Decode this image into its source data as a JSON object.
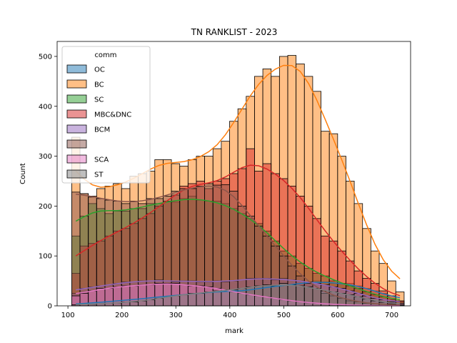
{
  "chart_data": {
    "type": "histogram",
    "title": "TN RANKLIST - 2023",
    "xlabel": "mark",
    "ylabel": "Count",
    "xlim": [
      80,
      735
    ],
    "ylim": [
      0,
      530
    ],
    "xticks": [
      100,
      200,
      300,
      400,
      500,
      600,
      700
    ],
    "yticks": [
      0,
      100,
      200,
      300,
      400,
      500
    ],
    "bins": {
      "start": 107,
      "width": 15.4,
      "count": 40
    },
    "legend": {
      "title": "comm",
      "placement": "top-left"
    },
    "series": [
      {
        "name": "OC",
        "color": "#1f77b4",
        "counts": [
          2,
          5,
          5,
          8,
          8,
          10,
          12,
          12,
          15,
          15,
          18,
          20,
          22,
          20,
          25,
          25,
          28,
          28,
          30,
          28,
          30,
          30,
          35,
          38,
          40,
          40,
          42,
          45,
          48,
          50,
          48,
          45,
          45,
          45,
          40,
          35,
          30,
          25,
          15,
          10
        ]
      },
      {
        "name": "BC",
        "color": "#ff7f0e",
        "counts": [
          338,
          225,
          220,
          235,
          240,
          245,
          235,
          260,
          265,
          270,
          293,
          293,
          285,
          280,
          293,
          300,
          300,
          315,
          330,
          370,
          395,
          420,
          460,
          475,
          460,
          500,
          502,
          485,
          460,
          430,
          350,
          345,
          300,
          250,
          205,
          155,
          110,
          85,
          50,
          28
        ]
      },
      {
        "name": "SC",
        "color": "#2ca02c",
        "counts": [
          140,
          180,
          205,
          195,
          185,
          190,
          190,
          195,
          195,
          205,
          205,
          210,
          208,
          215,
          220,
          212,
          210,
          210,
          205,
          195,
          185,
          175,
          165,
          150,
          130,
          110,
          100,
          85,
          75,
          65,
          60,
          50,
          45,
          40,
          35,
          28,
          22,
          18,
          12,
          8
        ]
      },
      {
        "name": "MBC&DNC",
        "color": "#d62728",
        "counts": [
          65,
          120,
          125,
          130,
          140,
          150,
          155,
          165,
          175,
          185,
          200,
          210,
          222,
          240,
          245,
          250,
          235,
          250,
          255,
          265,
          275,
          315,
          270,
          285,
          265,
          255,
          240,
          220,
          200,
          175,
          140,
          130,
          110,
          90,
          70,
          55,
          45,
          30,
          20,
          10
        ]
      },
      {
        "name": "BCM",
        "color": "#9467bd",
        "counts": [
          25,
          35,
          38,
          40,
          42,
          45,
          48,
          48,
          50,
          50,
          52,
          50,
          48,
          50,
          50,
          48,
          48,
          50,
          48,
          50,
          52,
          55,
          55,
          55,
          52,
          55,
          52,
          50,
          48,
          45,
          42,
          38,
          35,
          30,
          25,
          20,
          15,
          12,
          8,
          5
        ]
      },
      {
        "name": "",
        "color": "#8c564b",
        "counts": [
          228,
          225,
          218,
          215,
          212,
          210,
          205,
          210,
          205,
          215,
          215,
          220,
          230,
          235,
          235,
          240,
          245,
          242,
          243,
          230,
          200,
          180,
          160,
          140,
          120,
          100,
          80,
          60,
          45,
          35,
          25,
          20,
          15,
          10,
          8,
          5,
          4,
          3,
          2,
          1
        ]
      },
      {
        "name": "SCA",
        "color": "#e377c2",
        "counts": [
          20,
          25,
          30,
          35,
          35,
          38,
          40,
          40,
          42,
          42,
          45,
          45,
          45,
          42,
          40,
          40,
          38,
          35,
          32,
          28,
          25,
          22,
          20,
          18,
          15,
          12,
          10,
          8,
          6,
          5,
          4,
          3,
          2,
          2,
          1,
          1,
          1,
          0,
          0,
          0
        ]
      },
      {
        "name": "ST",
        "color": "#7f7f7f",
        "counts": [
          2,
          3,
          3,
          4,
          5,
          6,
          8,
          8,
          10,
          12,
          15,
          18,
          20,
          22,
          25,
          25,
          28,
          30,
          30,
          32,
          35,
          38,
          40,
          42,
          40,
          45,
          42,
          40,
          38,
          35,
          30,
          28,
          25,
          22,
          18,
          14,
          10,
          7,
          4,
          2
        ]
      }
    ]
  }
}
